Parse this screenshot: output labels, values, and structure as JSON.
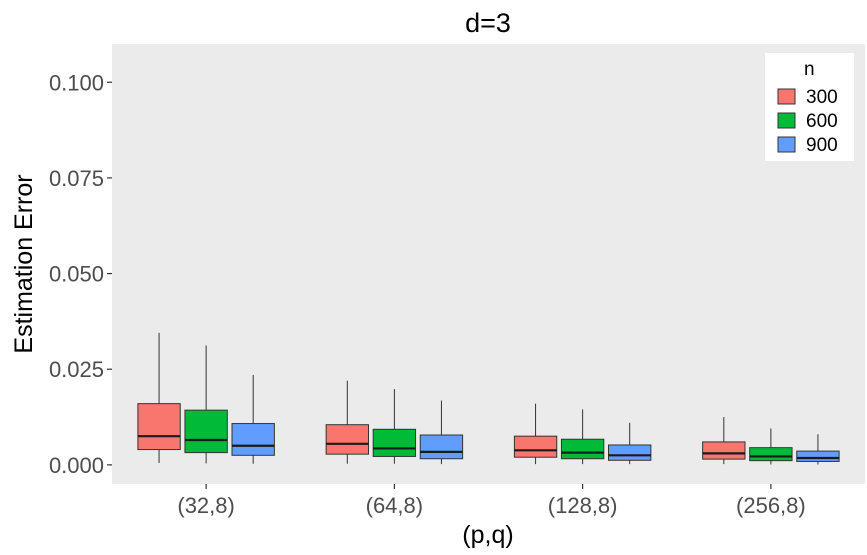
{
  "chart_data": {
    "type": "boxplot",
    "title": "d=3",
    "xlabel": "(p,q)",
    "ylabel": "Estimation Error",
    "categories": [
      "(32,8)",
      "(64,8)",
      "(128,8)",
      "(256,8)"
    ],
    "ylim": [
      -0.005,
      0.11
    ],
    "yticks": [
      0.0,
      0.025,
      0.05,
      0.075,
      0.1
    ],
    "ytick_labels": [
      "0.000",
      "0.025",
      "0.050",
      "0.075",
      "0.100"
    ],
    "grid": false,
    "legend": {
      "title": "n",
      "placement": "top-right"
    },
    "series": [
      {
        "name": "300",
        "color": "#F8766D",
        "boxes": [
          {
            "min": 0.0005,
            "q1": 0.004,
            "median": 0.0075,
            "q3": 0.016,
            "max": 0.0345
          },
          {
            "min": 0.0003,
            "q1": 0.0028,
            "median": 0.0055,
            "q3": 0.0105,
            "max": 0.022
          },
          {
            "min": 0.0002,
            "q1": 0.002,
            "median": 0.0038,
            "q3": 0.0075,
            "max": 0.016
          },
          {
            "min": 0.0002,
            "q1": 0.0015,
            "median": 0.003,
            "q3": 0.006,
            "max": 0.0125
          }
        ]
      },
      {
        "name": "600",
        "color": "#00BA38",
        "boxes": [
          {
            "min": 0.0004,
            "q1": 0.0032,
            "median": 0.0065,
            "q3": 0.0143,
            "max": 0.0312
          },
          {
            "min": 0.0003,
            "q1": 0.0022,
            "median": 0.0043,
            "q3": 0.0093,
            "max": 0.0198
          },
          {
            "min": 0.0002,
            "q1": 0.0016,
            "median": 0.0032,
            "q3": 0.0067,
            "max": 0.0145
          },
          {
            "min": 0.0001,
            "q1": 0.0011,
            "median": 0.0022,
            "q3": 0.0045,
            "max": 0.0095
          }
        ]
      },
      {
        "name": "900",
        "color": "#619CFF",
        "boxes": [
          {
            "min": 0.0003,
            "q1": 0.0025,
            "median": 0.005,
            "q3": 0.0108,
            "max": 0.0235
          },
          {
            "min": 0.0002,
            "q1": 0.0016,
            "median": 0.0034,
            "q3": 0.0078,
            "max": 0.0168
          },
          {
            "min": 0.0002,
            "q1": 0.0012,
            "median": 0.0025,
            "q3": 0.0052,
            "max": 0.011
          },
          {
            "min": 0.0001,
            "q1": 0.0009,
            "median": 0.0018,
            "q3": 0.0036,
            "max": 0.008
          }
        ]
      }
    ]
  }
}
